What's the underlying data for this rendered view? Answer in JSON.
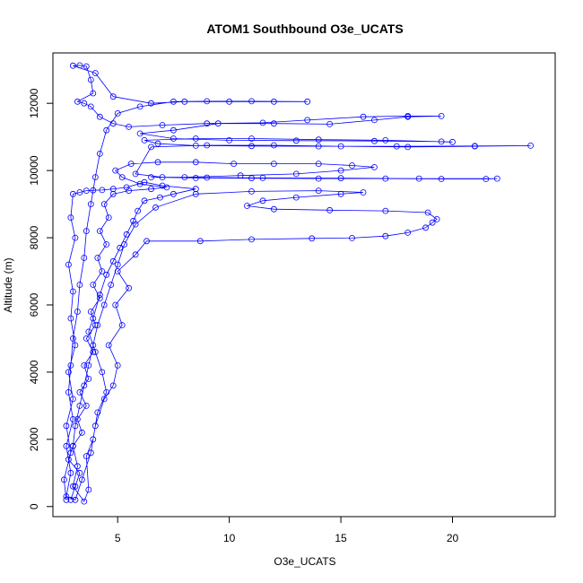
{
  "chart_data": {
    "type": "scatter",
    "title": "ATOM1 Southbound O3e_UCATS",
    "xlabel": "O3e_UCATS",
    "ylabel": "Altitude (m)",
    "xlim": [
      2.1,
      24.6
    ],
    "ylim": [
      -300,
      13500
    ],
    "xticks": [
      5,
      10,
      15,
      20
    ],
    "yticks": [
      0,
      2000,
      4000,
      6000,
      8000,
      10000,
      12000
    ],
    "grid": false,
    "legend": "none",
    "series": [
      {
        "style": "points and connecting lines",
        "color": "#0000ff",
        "points": [
          [
            2.9,
            200
          ],
          [
            3.1,
            600
          ],
          [
            3.3,
            1000
          ],
          [
            2.8,
            1400
          ],
          [
            3.0,
            1800
          ],
          [
            3.4,
            2200
          ],
          [
            3.2,
            2600
          ],
          [
            3.6,
            3000
          ],
          [
            3.3,
            3400
          ],
          [
            3.7,
            3800
          ],
          [
            3.5,
            4200
          ],
          [
            3.9,
            4600
          ],
          [
            3.6,
            5000
          ],
          [
            4.0,
            5400
          ],
          [
            3.8,
            5800
          ],
          [
            4.2,
            6200
          ],
          [
            3.9,
            6600
          ],
          [
            4.3,
            7000
          ],
          [
            4.1,
            7400
          ],
          [
            4.5,
            7800
          ],
          [
            4.2,
            8200
          ],
          [
            4.6,
            8600
          ],
          [
            4.4,
            9000
          ],
          [
            4.8,
            9300
          ],
          [
            5.5,
            9400
          ],
          [
            6.5,
            9450
          ],
          [
            7.2,
            9500
          ],
          [
            6.0,
            9600
          ],
          [
            5.2,
            9800
          ],
          [
            4.9,
            10000
          ],
          [
            5.6,
            10200
          ],
          [
            6.8,
            10250
          ],
          [
            8.5,
            10250
          ],
          [
            10.2,
            10200
          ],
          [
            12.0,
            10200
          ],
          [
            14.0,
            10200
          ],
          [
            15.5,
            10150
          ],
          [
            16.5,
            10100
          ],
          [
            15.0,
            10000
          ],
          [
            13.0,
            9900
          ],
          [
            10.5,
            9850
          ],
          [
            8.0,
            9800
          ],
          [
            6.5,
            9800
          ],
          [
            8.5,
            9780
          ],
          [
            11.0,
            9770
          ],
          [
            14.0,
            9760
          ],
          [
            17.0,
            9760
          ],
          [
            19.5,
            9750
          ],
          [
            21.5,
            9750
          ],
          [
            22.0,
            9760
          ],
          [
            18.5,
            9760
          ],
          [
            15.0,
            9770
          ],
          [
            11.5,
            9780
          ],
          [
            9.0,
            9790
          ],
          [
            7.0,
            9800
          ],
          [
            5.8,
            9900
          ],
          [
            6.5,
            10700
          ],
          [
            9.0,
            10750
          ],
          [
            12.0,
            10750
          ],
          [
            15.0,
            10720
          ],
          [
            18.0,
            10700
          ],
          [
            21.0,
            10720
          ],
          [
            23.5,
            10740
          ],
          [
            21.0,
            10730
          ],
          [
            17.5,
            10720
          ],
          [
            14.0,
            10720
          ],
          [
            11.0,
            10730
          ],
          [
            8.5,
            10740
          ],
          [
            6.8,
            10800
          ],
          [
            6.2,
            10900
          ],
          [
            8.5,
            10950
          ],
          [
            11.0,
            10950
          ],
          [
            14.0,
            10920
          ],
          [
            17.0,
            10900
          ],
          [
            20.0,
            10850
          ],
          [
            19.5,
            10860
          ],
          [
            16.5,
            10880
          ],
          [
            13.0,
            10890
          ],
          [
            10.0,
            10900
          ],
          [
            7.5,
            10950
          ],
          [
            6.0,
            11100
          ],
          [
            7.5,
            11200
          ],
          [
            9.5,
            11400
          ],
          [
            12.0,
            11400
          ],
          [
            14.5,
            11380
          ],
          [
            16.5,
            11500
          ],
          [
            18.0,
            11600
          ],
          [
            19.5,
            11620
          ],
          [
            18.0,
            11620
          ],
          [
            16.0,
            11600
          ],
          [
            13.5,
            11500
          ],
          [
            11.5,
            11420
          ],
          [
            9.0,
            11400
          ],
          [
            7.0,
            11350
          ],
          [
            5.5,
            11300
          ],
          [
            4.8,
            11400
          ],
          [
            4.2,
            11600
          ],
          [
            3.8,
            11900
          ],
          [
            3.5,
            12000
          ],
          [
            3.2,
            12050
          ],
          [
            3.9,
            12300
          ],
          [
            3.8,
            12700
          ],
          [
            3.6,
            13100
          ],
          [
            3.3,
            13130
          ],
          [
            3.0,
            13120
          ],
          [
            4.0,
            12900
          ],
          [
            4.8,
            12200
          ],
          [
            6.5,
            12000
          ],
          [
            8.0,
            12050
          ],
          [
            10.0,
            12050
          ],
          [
            12.0,
            12050
          ],
          [
            13.5,
            12050
          ],
          [
            11.0,
            12060
          ],
          [
            9.0,
            12060
          ],
          [
            7.5,
            12050
          ],
          [
            6.0,
            11900
          ],
          [
            5.0,
            11700
          ],
          [
            4.5,
            11200
          ],
          [
            4.2,
            10500
          ],
          [
            4.0,
            9800
          ],
          [
            3.8,
            9000
          ],
          [
            3.6,
            8200
          ],
          [
            3.5,
            7400
          ],
          [
            3.3,
            6600
          ],
          [
            3.2,
            5800
          ],
          [
            3.0,
            5000
          ],
          [
            2.9,
            4200
          ],
          [
            2.8,
            3400
          ],
          [
            3.0,
            2600
          ],
          [
            2.7,
            1800
          ],
          [
            2.9,
            1000
          ],
          [
            2.7,
            300
          ],
          [
            3.1,
            200
          ],
          [
            3.4,
            800
          ],
          [
            3.8,
            1600
          ],
          [
            4.0,
            2400
          ],
          [
            4.4,
            3200
          ],
          [
            4.8,
            3600
          ],
          [
            5.0,
            4200
          ],
          [
            4.6,
            4800
          ],
          [
            5.2,
            5400
          ],
          [
            4.9,
            6000
          ],
          [
            5.5,
            6500
          ],
          [
            5.0,
            7000
          ],
          [
            5.8,
            7500
          ],
          [
            6.3,
            7900
          ],
          [
            8.7,
            7900
          ],
          [
            11.0,
            7950
          ],
          [
            13.7,
            7980
          ],
          [
            15.5,
            7990
          ],
          [
            17.0,
            8050
          ],
          [
            18.0,
            8150
          ],
          [
            18.8,
            8300
          ],
          [
            19.1,
            8450
          ],
          [
            19.3,
            8550
          ],
          [
            18.9,
            8750
          ],
          [
            17.0,
            8800
          ],
          [
            14.5,
            8820
          ],
          [
            12.0,
            8850
          ],
          [
            10.8,
            8950
          ],
          [
            11.5,
            9100
          ],
          [
            13.0,
            9200
          ],
          [
            15.0,
            9300
          ],
          [
            16.0,
            9350
          ],
          [
            14.0,
            9400
          ],
          [
            11.0,
            9380
          ],
          [
            8.5,
            9300
          ],
          [
            6.7,
            8900
          ],
          [
            5.8,
            8400
          ],
          [
            5.3,
            7800
          ],
          [
            5.0,
            7200
          ],
          [
            4.7,
            6600
          ],
          [
            4.4,
            6000
          ],
          [
            4.1,
            5400
          ],
          [
            3.9,
            4800
          ],
          [
            3.7,
            4200
          ],
          [
            3.5,
            3600
          ],
          [
            3.3,
            3000
          ],
          [
            3.1,
            2400
          ],
          [
            3.0,
            1800
          ],
          [
            3.2,
            1200
          ],
          [
            3.0,
            600
          ],
          [
            3.5,
            150
          ],
          [
            3.7,
            500
          ],
          [
            3.6,
            1500
          ],
          [
            3.9,
            2000
          ],
          [
            4.1,
            2800
          ],
          [
            4.5,
            3400
          ],
          [
            4.3,
            4000
          ],
          [
            4.0,
            4600
          ],
          [
            3.7,
            5200
          ],
          [
            3.9,
            5600
          ],
          [
            4.2,
            6300
          ],
          [
            4.5,
            6900
          ],
          [
            4.8,
            7300
          ],
          [
            5.1,
            7700
          ],
          [
            5.4,
            8100
          ],
          [
            5.7,
            8500
          ],
          [
            5.9,
            8800
          ],
          [
            6.2,
            9100
          ],
          [
            6.9,
            9200
          ],
          [
            7.5,
            9300
          ],
          [
            8.5,
            9450
          ],
          [
            7.0,
            9550
          ],
          [
            6.2,
            9650
          ],
          [
            5.4,
            9500
          ],
          [
            4.8,
            9450
          ],
          [
            4.3,
            9420
          ],
          [
            3.9,
            9410
          ],
          [
            3.6,
            9400
          ],
          [
            3.3,
            9350
          ],
          [
            3.0,
            9300
          ],
          [
            2.9,
            8600
          ],
          [
            3.1,
            8000
          ],
          [
            2.8,
            7200
          ],
          [
            3.0,
            6400
          ],
          [
            2.9,
            5600
          ],
          [
            3.1,
            4800
          ],
          [
            2.8,
            4000
          ],
          [
            3.0,
            3200
          ],
          [
            2.7,
            2400
          ],
          [
            2.9,
            1600
          ],
          [
            2.6,
            800
          ],
          [
            2.7,
            200
          ]
        ]
      }
    ]
  }
}
